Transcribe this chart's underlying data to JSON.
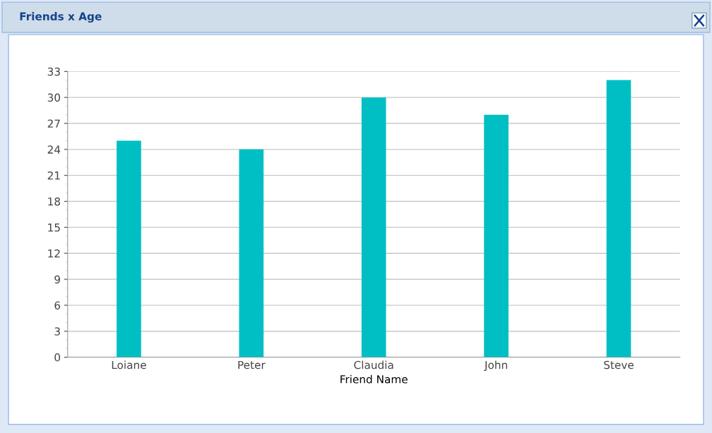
{
  "chart_data": {
    "type": "bar",
    "title": "Friends x Age",
    "xlabel": "Friend Name",
    "categories": [
      "Loiane",
      "Peter",
      "Claudia",
      "John",
      "Steve"
    ],
    "values": [
      25,
      24,
      30,
      28,
      32
    ],
    "color": "#00bfc4",
    "ylim": [
      0,
      33
    ],
    "yticks": [
      0,
      3,
      6,
      9,
      12,
      15,
      18,
      21,
      24,
      27,
      30,
      33
    ],
    "grid": "y"
  }
}
